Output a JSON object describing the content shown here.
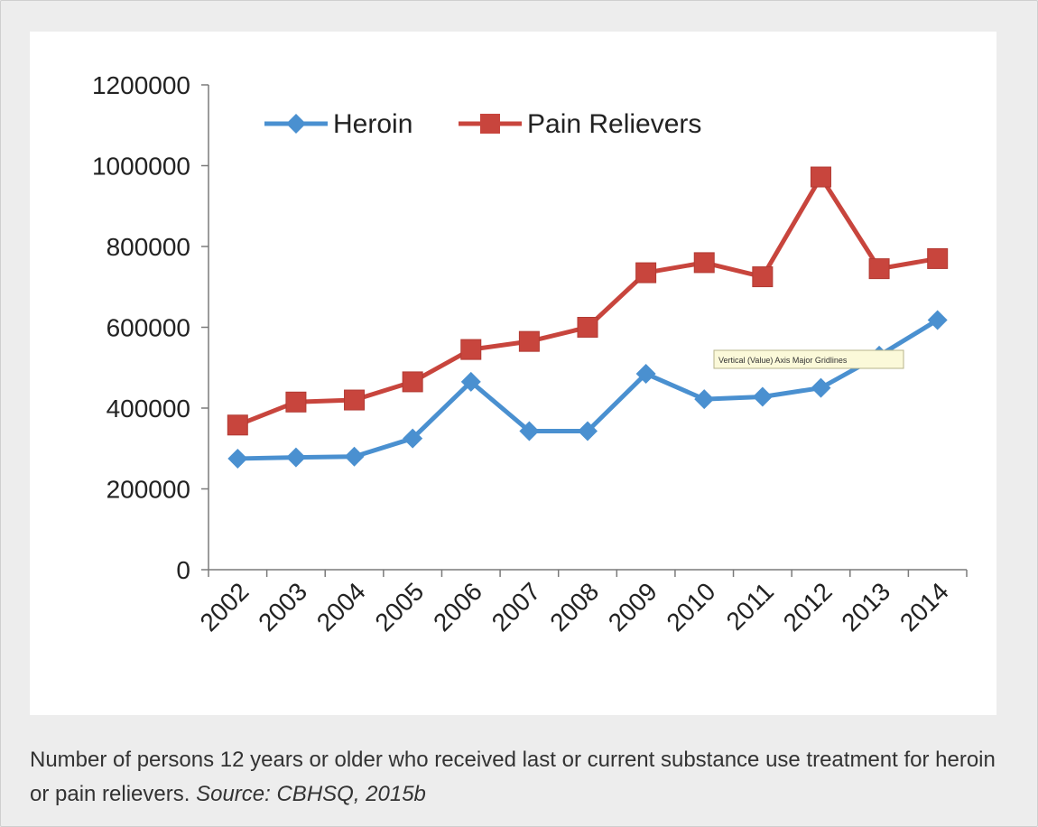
{
  "chart_data": {
    "type": "line",
    "categories": [
      "2002",
      "2003",
      "2004",
      "2005",
      "2006",
      "2007",
      "2008",
      "2009",
      "2010",
      "2011",
      "2012",
      "2013",
      "2014"
    ],
    "series": [
      {
        "name": "Heroin",
        "color": "#4a90d0",
        "marker": "diamond",
        "values": [
          275000,
          278000,
          280000,
          325000,
          465000,
          343000,
          343000,
          485000,
          422000,
          428000,
          450000,
          530000,
          618000
        ]
      },
      {
        "name": "Pain Relievers",
        "color": "#c8453d",
        "marker": "square",
        "values": [
          358000,
          415000,
          420000,
          465000,
          545000,
          565000,
          600000,
          735000,
          760000,
          725000,
          972000,
          745000,
          770000
        ]
      }
    ],
    "y_ticks": [
      "0",
      "200000",
      "400000",
      "600000",
      "800000",
      "1000000",
      "1200000"
    ],
    "ylim": [
      0,
      1200000
    ],
    "legend": "top-left",
    "tooltip": "Vertical (Value) Axis Major Gridlines",
    "caption": {
      "text": "Number of persons 12 years or older who received last or current substance use treatment for heroin or pain relievers.",
      "source": "Source: CBHSQ, 2015b"
    }
  }
}
